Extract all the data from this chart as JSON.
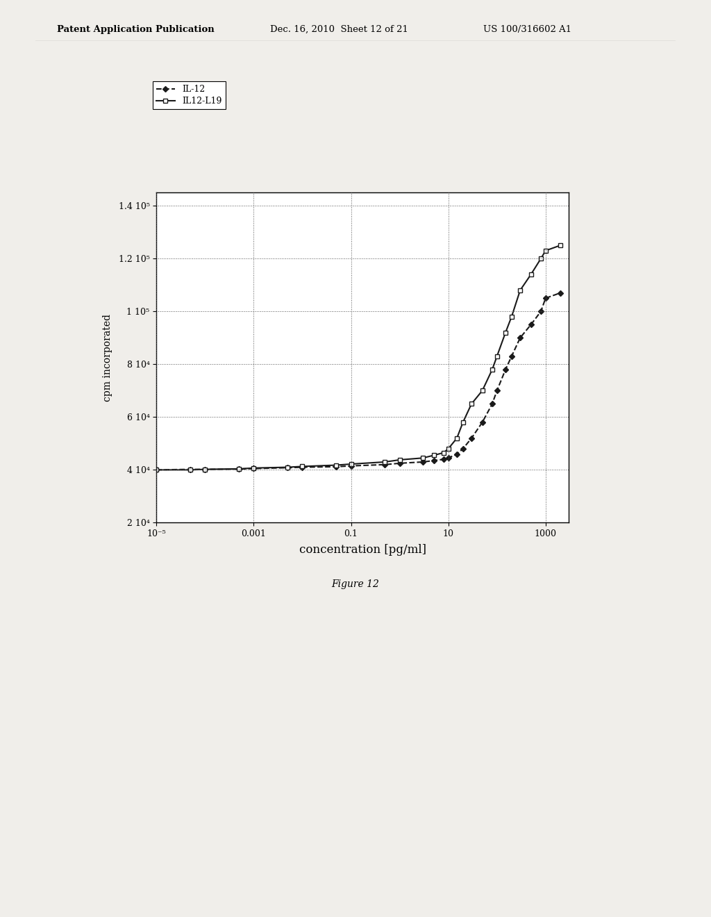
{
  "figure_label": "Figure 12",
  "xlabel": "concentration [pg/ml]",
  "ylabel": "cpm incorporated",
  "xlim": [
    1e-05,
    3000
  ],
  "ylim": [
    20000,
    145000
  ],
  "yticks": [
    20000,
    40000,
    60000,
    80000,
    100000,
    120000,
    140000
  ],
  "ytick_labels": [
    "2 10⁴",
    "4 10⁴",
    "6 10⁴",
    "8 10⁴",
    "1 10⁵",
    "1.2 10⁵",
    "1.4 10⁵"
  ],
  "xticks": [
    1e-05,
    0.001,
    0.1,
    10,
    1000
  ],
  "xtick_labels": [
    "10⁻⁵",
    "0.001",
    "0.1",
    "10",
    "1000"
  ],
  "il12_x": [
    1e-05,
    5e-05,
    0.0001,
    0.0005,
    0.001,
    0.005,
    0.01,
    0.05,
    0.1,
    0.5,
    1.0,
    3.0,
    5.0,
    8.0,
    10.0,
    15.0,
    20.0,
    30.0,
    50.0,
    80.0,
    100.0,
    150.0,
    200.0,
    300.0,
    500.0,
    800.0,
    1000.0,
    2000.0
  ],
  "il12_y": [
    40000,
    40200,
    40200,
    40300,
    40500,
    40800,
    41000,
    41200,
    41500,
    42000,
    42500,
    43000,
    43500,
    44000,
    44500,
    46000,
    48000,
    52000,
    58000,
    65000,
    70000,
    78000,
    83000,
    90000,
    95000,
    100000,
    105000,
    107000
  ],
  "il12l19_x": [
    1e-05,
    5e-05,
    0.0001,
    0.0005,
    0.001,
    0.005,
    0.01,
    0.05,
    0.1,
    0.5,
    1.0,
    3.0,
    5.0,
    8.0,
    10.0,
    15.0,
    20.0,
    30.0,
    50.0,
    80.0,
    100.0,
    150.0,
    200.0,
    300.0,
    500.0,
    800.0,
    1000.0,
    2000.0
  ],
  "il12l19_y": [
    40000,
    40000,
    40200,
    40400,
    40700,
    41000,
    41300,
    41800,
    42200,
    43000,
    43800,
    44500,
    45500,
    46500,
    48000,
    52000,
    58000,
    65000,
    70000,
    78000,
    83000,
    92000,
    98000,
    108000,
    114000,
    120000,
    123000,
    125000
  ],
  "legend_labels": [
    "IL-12",
    "IL12-L19"
  ],
  "background_color": "#f0eeea",
  "line_color": "#1a1a1a",
  "grid_color": "#555555",
  "header_left": "Patent Application Publication",
  "header_mid": "Dec. 16, 2010  Sheet 12 of 21",
  "header_right": "US 100/316602 A1"
}
